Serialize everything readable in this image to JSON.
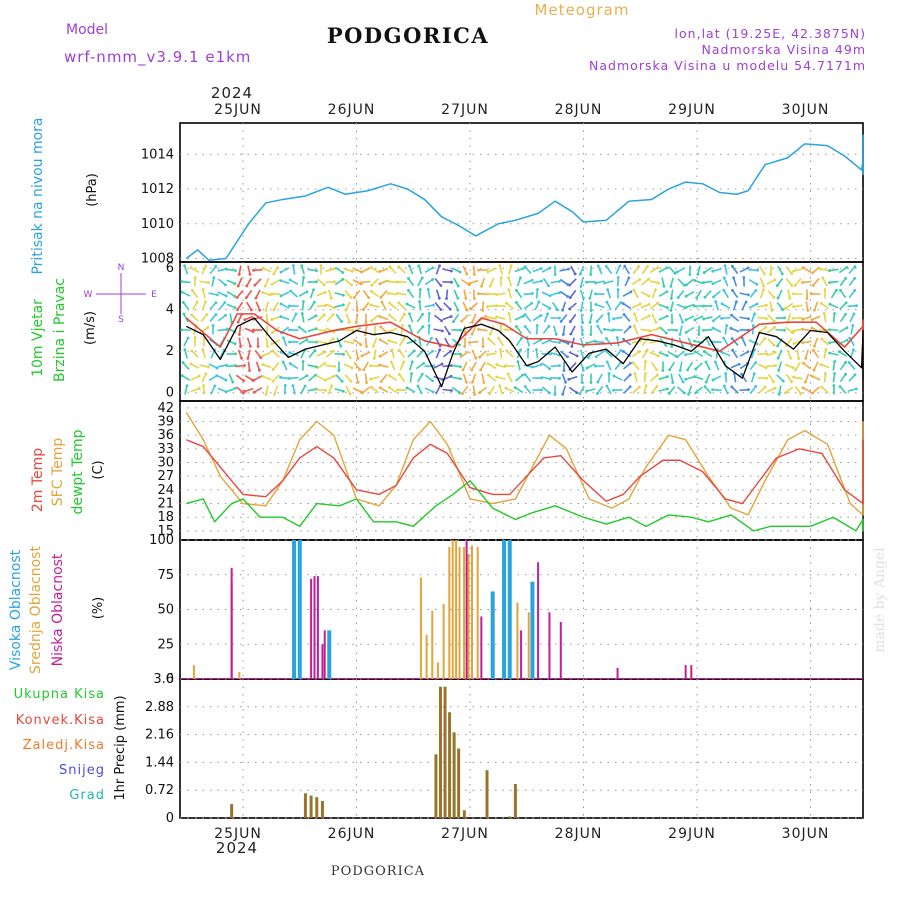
{
  "header": {
    "model_label": "Model",
    "model_name": "wrf-nmm_v3.9.1 e1km",
    "title": "PODGORICA",
    "subtitle": "Meteogram",
    "coords": "lon,lat (19.25E, 42.3875N)",
    "elevation": "Nadmorska Visina 49m",
    "model_elevation": "Nadmorska Visina u modelu 54.7171m",
    "footer": "PODGORICA",
    "watermark": "made by Angel"
  },
  "colors": {
    "pressure": "#29a3e0",
    "wind_speed": "#000000",
    "gust": "#e8473c",
    "t2m": "#e8473c",
    "tsfc": "#e3a53a",
    "dewpt": "#22c92a",
    "cloud_high": "#29a3e0",
    "cloud_mid": "#e3a53a",
    "cloud_low": "#c21e9a",
    "precip_total": "#6b8e23",
    "precip_conv": "#e8473c",
    "label_green": "#22c92a",
    "label_red": "#e8473c",
    "label_orange": "#f07a2a",
    "label_blue": "#4b4be0",
    "label_teal": "#22b8b0",
    "label_purple": "#a040d0"
  },
  "axes": {
    "year_top": "2024",
    "year_bottom": "2024",
    "day_labels": [
      "25JUN",
      "26JUN",
      "27JUN",
      "28JUN",
      "29JUN",
      "30JUN"
    ],
    "pressure": {
      "label_main": "Pritisak na nivou mora",
      "label_unit": "(hPa)",
      "ticks": [
        "1008",
        "1010",
        "1012",
        "1014"
      ],
      "ylim": [
        1007.8,
        1015.8
      ]
    },
    "wind": {
      "label_a": "10m Vjetar",
      "label_b": "Brzina i Pravac",
      "label_unit": "(m/s)",
      "ticks": [
        "0",
        "2",
        "4",
        "6"
      ],
      "ylim": [
        -0.4,
        6.3
      ],
      "compass_n": "N",
      "compass_w": "W",
      "compass_e": "E",
      "compass_s": "S"
    },
    "temp": {
      "label_a": "2m Temp",
      "label_b": "SFC Temp",
      "label_c": "dewpt Temp",
      "label_unit": "(C)",
      "ticks": [
        "15",
        "18",
        "21",
        "24",
        "27",
        "30",
        "33",
        "36",
        "39",
        "42"
      ],
      "ylim": [
        13,
        43.5
      ]
    },
    "cloud": {
      "label_a": "Visoka Oblacnost",
      "label_b": "Srednja Oblacnost",
      "label_c": "Niska Oblacnost",
      "label_unit": "(%)",
      "ticks": [
        "0",
        "25",
        "50",
        "75",
        "100"
      ],
      "ylim": [
        0,
        100
      ]
    },
    "precip": {
      "label_unit": "1hr Precip (mm)",
      "ticks": [
        "0",
        "0.72",
        "1.44",
        "2.16",
        "2.88",
        "3.6"
      ],
      "ylim": [
        0,
        3.6
      ],
      "legend": [
        "Ukupna Kisa",
        "Konvek.Kisa",
        "Zaledj.Kisa",
        "Snijeg",
        "Grad"
      ]
    }
  },
  "chart_data": {
    "type": "line",
    "x_unit": "days from 25JUN 00 UTC",
    "pressure_hpa": [
      [
        -0.5,
        1008.0
      ],
      [
        -0.4,
        1008.5
      ],
      [
        -0.3,
        1007.9
      ],
      [
        -0.15,
        1008.0
      ],
      [
        0.05,
        1010.0
      ],
      [
        0.2,
        1011.2
      ],
      [
        0.35,
        1011.4
      ],
      [
        0.55,
        1011.6
      ],
      [
        0.75,
        1012.1
      ],
      [
        0.9,
        1011.7
      ],
      [
        1.1,
        1011.9
      ],
      [
        1.3,
        1012.3
      ],
      [
        1.45,
        1012.0
      ],
      [
        1.6,
        1011.4
      ],
      [
        1.75,
        1010.4
      ],
      [
        1.9,
        1009.9
      ],
      [
        2.05,
        1009.3
      ],
      [
        2.25,
        1010.0
      ],
      [
        2.4,
        1010.2
      ],
      [
        2.6,
        1010.6
      ],
      [
        2.75,
        1011.3
      ],
      [
        2.9,
        1010.7
      ],
      [
        3.0,
        1010.1
      ],
      [
        3.2,
        1010.2
      ],
      [
        3.4,
        1011.3
      ],
      [
        3.6,
        1011.4
      ],
      [
        3.75,
        1012.0
      ],
      [
        3.9,
        1012.4
      ],
      [
        4.05,
        1012.3
      ],
      [
        4.2,
        1011.8
      ],
      [
        4.35,
        1011.7
      ],
      [
        4.45,
        1011.9
      ],
      [
        4.6,
        1013.4
      ],
      [
        4.8,
        1013.8
      ],
      [
        4.95,
        1014.6
      ],
      [
        5.15,
        1014.5
      ],
      [
        5.3,
        1013.9
      ],
      [
        5.45,
        1013.1
      ],
      [
        5.6,
        1013.6
      ],
      [
        5.75,
        1014.7
      ],
      [
        5.9,
        1014.8
      ],
      [
        6.05,
        1015.1
      ],
      [
        6.2,
        1014.8
      ],
      [
        6.35,
        1013.9
      ],
      [
        6.5,
        1012.8
      ]
    ],
    "wind_speed_ms": [
      [
        -0.5,
        3.2
      ],
      [
        -0.35,
        2.8
      ],
      [
        -0.2,
        1.6
      ],
      [
        -0.05,
        3.2
      ],
      [
        0.1,
        3.6
      ],
      [
        0.25,
        2.6
      ],
      [
        0.4,
        1.7
      ],
      [
        0.55,
        2.1
      ],
      [
        0.7,
        2.3
      ],
      [
        0.85,
        2.5
      ],
      [
        1.0,
        3.0
      ],
      [
        1.15,
        2.8
      ],
      [
        1.3,
        2.9
      ],
      [
        1.45,
        2.7
      ],
      [
        1.6,
        2.0
      ],
      [
        1.75,
        0.3
      ],
      [
        1.85,
        1.9
      ],
      [
        1.95,
        3.1
      ],
      [
        2.1,
        3.3
      ],
      [
        2.25,
        3.0
      ],
      [
        2.35,
        2.5
      ],
      [
        2.5,
        1.3
      ],
      [
        2.6,
        1.5
      ],
      [
        2.75,
        2.2
      ],
      [
        2.9,
        1.0
      ],
      [
        3.05,
        1.9
      ],
      [
        3.2,
        2.1
      ],
      [
        3.35,
        1.4
      ],
      [
        3.5,
        2.6
      ],
      [
        3.65,
        2.5
      ],
      [
        3.8,
        2.3
      ],
      [
        3.95,
        2.0
      ],
      [
        4.1,
        2.7
      ],
      [
        4.25,
        1.3
      ],
      [
        4.4,
        0.7
      ],
      [
        4.55,
        2.9
      ],
      [
        4.7,
        2.7
      ],
      [
        4.85,
        2.1
      ],
      [
        5.0,
        3.0
      ],
      [
        5.15,
        2.9
      ],
      [
        5.3,
        2.0
      ],
      [
        5.45,
        1.2
      ],
      [
        5.6,
        2.9
      ],
      [
        5.75,
        3.0
      ],
      [
        5.9,
        2.4
      ],
      [
        6.05,
        1.0
      ],
      [
        6.2,
        0.6
      ],
      [
        6.35,
        1.7
      ],
      [
        6.5,
        2.2
      ]
    ],
    "gust_ms": [
      [
        -0.5,
        3.6
      ],
      [
        -0.2,
        2.2
      ],
      [
        -0.05,
        3.8
      ],
      [
        0.1,
        3.8
      ],
      [
        0.3,
        3.0
      ],
      [
        0.5,
        2.6
      ],
      [
        0.8,
        3.0
      ],
      [
        1.0,
        3.2
      ],
      [
        1.3,
        3.4
      ],
      [
        1.6,
        2.5
      ],
      [
        1.85,
        2.2
      ],
      [
        2.1,
        3.6
      ],
      [
        2.3,
        3.3
      ],
      [
        2.5,
        2.6
      ],
      [
        2.75,
        2.6
      ],
      [
        3.0,
        2.3
      ],
      [
        3.3,
        2.4
      ],
      [
        3.6,
        2.8
      ],
      [
        3.9,
        2.4
      ],
      [
        4.2,
        2.0
      ],
      [
        4.55,
        3.3
      ],
      [
        4.8,
        3.4
      ],
      [
        5.05,
        3.4
      ],
      [
        5.3,
        2.2
      ],
      [
        5.6,
        3.2
      ],
      [
        5.85,
        3.5
      ],
      [
        6.1,
        1.5
      ],
      [
        6.35,
        2.3
      ],
      [
        6.5,
        2.2
      ]
    ],
    "t2m_c": [
      [
        -0.5,
        35
      ],
      [
        -0.35,
        33.5
      ],
      [
        -0.2,
        29
      ],
      [
        0.0,
        23
      ],
      [
        0.2,
        22.5
      ],
      [
        0.35,
        26
      ],
      [
        0.5,
        31
      ],
      [
        0.65,
        33.5
      ],
      [
        0.8,
        31
      ],
      [
        1.0,
        24
      ],
      [
        1.2,
        23
      ],
      [
        1.35,
        25
      ],
      [
        1.5,
        31
      ],
      [
        1.65,
        34
      ],
      [
        1.8,
        32
      ],
      [
        2.0,
        24.5
      ],
      [
        2.2,
        23
      ],
      [
        2.35,
        23
      ],
      [
        2.5,
        27
      ],
      [
        2.65,
        31
      ],
      [
        2.8,
        31.5
      ],
      [
        3.0,
        26
      ],
      [
        3.2,
        21.5
      ],
      [
        3.35,
        23
      ],
      [
        3.5,
        27
      ],
      [
        3.7,
        30.5
      ],
      [
        3.85,
        30.5
      ],
      [
        4.05,
        28
      ],
      [
        4.25,
        22
      ],
      [
        4.4,
        21
      ],
      [
        4.55,
        26
      ],
      [
        4.7,
        31
      ],
      [
        4.9,
        33
      ],
      [
        5.1,
        32
      ],
      [
        5.3,
        24
      ],
      [
        5.5,
        21
      ],
      [
        5.65,
        26
      ],
      [
        5.85,
        32
      ],
      [
        6.05,
        34
      ],
      [
        6.25,
        30
      ],
      [
        6.4,
        21.5
      ],
      [
        6.5,
        23.5
      ],
      [
        6.65,
        31
      ],
      [
        6.85,
        34.5
      ],
      [
        7.0,
        35
      ]
    ],
    "tsfc_c": [
      [
        -0.5,
        41
      ],
      [
        -0.35,
        35
      ],
      [
        -0.2,
        27
      ],
      [
        0.0,
        21
      ],
      [
        0.2,
        20.5
      ],
      [
        0.35,
        26
      ],
      [
        0.5,
        35
      ],
      [
        0.65,
        39
      ],
      [
        0.8,
        36
      ],
      [
        1.0,
        22
      ],
      [
        1.2,
        20.5
      ],
      [
        1.35,
        25
      ],
      [
        1.5,
        35
      ],
      [
        1.65,
        39
      ],
      [
        1.8,
        34
      ],
      [
        2.0,
        22
      ],
      [
        2.2,
        21
      ],
      [
        2.4,
        22
      ],
      [
        2.55,
        29
      ],
      [
        2.7,
        36
      ],
      [
        2.85,
        33
      ],
      [
        3.05,
        22
      ],
      [
        3.25,
        20
      ],
      [
        3.4,
        22
      ],
      [
        3.55,
        29
      ],
      [
        3.75,
        36
      ],
      [
        3.9,
        35
      ],
      [
        4.1,
        27
      ],
      [
        4.3,
        20
      ],
      [
        4.45,
        18.5
      ],
      [
        4.6,
        26
      ],
      [
        4.8,
        35
      ],
      [
        4.95,
        37
      ],
      [
        5.15,
        34
      ],
      [
        5.35,
        21
      ],
      [
        5.5,
        18.5
      ],
      [
        5.7,
        28
      ],
      [
        5.9,
        36
      ],
      [
        6.1,
        37
      ],
      [
        6.3,
        30
      ],
      [
        6.45,
        18.5
      ],
      [
        6.6,
        23
      ],
      [
        6.8,
        35
      ],
      [
        6.95,
        38.5
      ],
      [
        7.0,
        39
      ]
    ],
    "dewpt_c": [
      [
        -0.5,
        21
      ],
      [
        -0.35,
        22
      ],
      [
        -0.25,
        17
      ],
      [
        -0.1,
        21
      ],
      [
        0.0,
        22
      ],
      [
        0.15,
        18
      ],
      [
        0.35,
        18
      ],
      [
        0.5,
        16
      ],
      [
        0.65,
        21
      ],
      [
        0.85,
        20.5
      ],
      [
        1.0,
        22
      ],
      [
        1.15,
        17
      ],
      [
        1.35,
        17
      ],
      [
        1.5,
        16
      ],
      [
        1.7,
        20.5
      ],
      [
        1.85,
        23
      ],
      [
        2.0,
        26
      ],
      [
        2.2,
        20
      ],
      [
        2.4,
        17.5
      ],
      [
        2.55,
        19
      ],
      [
        2.75,
        20.5
      ],
      [
        3.0,
        18
      ],
      [
        3.2,
        16.5
      ],
      [
        3.4,
        18
      ],
      [
        3.55,
        16
      ],
      [
        3.75,
        18.5
      ],
      [
        3.95,
        18
      ],
      [
        4.1,
        17
      ],
      [
        4.3,
        18.5
      ],
      [
        4.5,
        15
      ],
      [
        4.65,
        16
      ],
      [
        4.85,
        16
      ],
      [
        5.0,
        16
      ],
      [
        5.2,
        18
      ],
      [
        5.4,
        15
      ],
      [
        5.6,
        17.5
      ],
      [
        5.8,
        17
      ],
      [
        6.0,
        16.5
      ],
      [
        6.2,
        17
      ],
      [
        6.4,
        15
      ],
      [
        6.6,
        17.5
      ],
      [
        6.8,
        16
      ],
      [
        7.0,
        15.5
      ]
    ],
    "cloud_pct": [
      [
        -0.45,
        0,
        10,
        0
      ],
      [
        -0.1,
        0,
        0,
        70
      ],
      [
        -0.1,
        0,
        0,
        80
      ],
      [
        -0.05,
        0,
        5,
        0
      ],
      [
        0.45,
        100,
        0,
        0
      ],
      [
        0.5,
        100,
        0,
        0
      ],
      [
        0.6,
        0,
        0,
        72
      ],
      [
        0.63,
        0,
        0,
        74
      ],
      [
        0.66,
        0,
        0,
        74
      ],
      [
        0.7,
        0,
        0,
        25
      ],
      [
        0.72,
        0,
        0,
        35
      ],
      [
        0.76,
        35,
        0,
        0
      ],
      [
        1.55,
        0,
        73,
        0
      ],
      [
        1.6,
        0,
        32,
        0
      ],
      [
        1.65,
        0,
        49,
        0
      ],
      [
        1.7,
        0,
        12,
        0
      ],
      [
        1.75,
        0,
        54,
        0
      ],
      [
        1.8,
        0,
        95,
        0
      ],
      [
        1.83,
        0,
        100,
        0
      ],
      [
        1.86,
        0,
        100,
        0
      ],
      [
        1.89,
        0,
        95,
        0
      ],
      [
        1.93,
        0,
        95,
        0
      ],
      [
        1.97,
        0,
        90,
        100
      ],
      [
        2.0,
        0,
        96,
        0
      ],
      [
        2.05,
        0,
        95,
        0
      ],
      [
        2.1,
        0,
        0,
        45
      ],
      [
        2.15,
        0,
        0,
        0
      ],
      [
        2.2,
        63,
        0,
        0
      ],
      [
        2.3,
        100,
        0,
        0
      ],
      [
        2.35,
        100,
        0,
        0
      ],
      [
        2.4,
        0,
        55,
        0
      ],
      [
        2.45,
        0,
        0,
        35
      ],
      [
        2.5,
        0,
        48,
        0
      ],
      [
        2.55,
        70,
        0,
        0
      ],
      [
        2.6,
        0,
        0,
        84
      ],
      [
        2.7,
        0,
        0,
        48
      ],
      [
        2.8,
        0,
        0,
        41
      ],
      [
        3.3,
        0,
        0,
        8
      ],
      [
        3.9,
        0,
        0,
        10
      ],
      [
        3.95,
        0,
        0,
        10
      ]
    ],
    "precip_mm": [
      [
        -0.1,
        0.36
      ],
      [
        0.55,
        0.64
      ],
      [
        0.6,
        0.58
      ],
      [
        0.65,
        0.54
      ],
      [
        0.7,
        0.44
      ],
      [
        1.7,
        1.65
      ],
      [
        1.74,
        3.4
      ],
      [
        1.78,
        3.4
      ],
      [
        1.82,
        2.74
      ],
      [
        1.86,
        2.22
      ],
      [
        1.9,
        1.8
      ],
      [
        1.95,
        0.2
      ],
      [
        2.15,
        1.24
      ],
      [
        2.35,
        0.04
      ],
      [
        2.4,
        0.88
      ]
    ]
  }
}
